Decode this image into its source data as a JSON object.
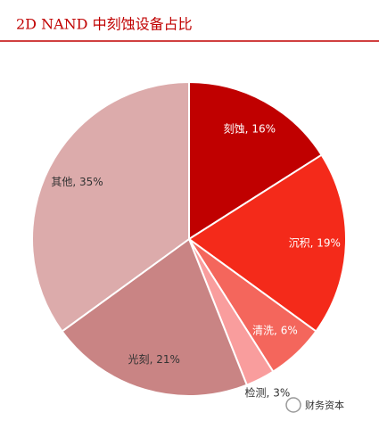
{
  "chart_data": {
    "type": "pie",
    "title": "2D NAND 中刻蚀设备占比",
    "categories": [
      "刻蚀",
      "沉积",
      "清洗",
      "检测",
      "光刻",
      "其他"
    ],
    "values": [
      16,
      19,
      6,
      3,
      21,
      35
    ],
    "value_labels": [
      "16%",
      "19%",
      "6%",
      "3%",
      "21%",
      "35%"
    ],
    "label_separator": ", ",
    "colors": [
      "#c00000",
      "#f42a1a",
      "#f4665c",
      "#f99d9d",
      "#c98484",
      "#dcabab"
    ],
    "label_colors": [
      "#ffffff",
      "#ffffff",
      "#ffffff",
      "#333333",
      "#333333",
      "#333333"
    ]
  },
  "watermark": "财务资本"
}
